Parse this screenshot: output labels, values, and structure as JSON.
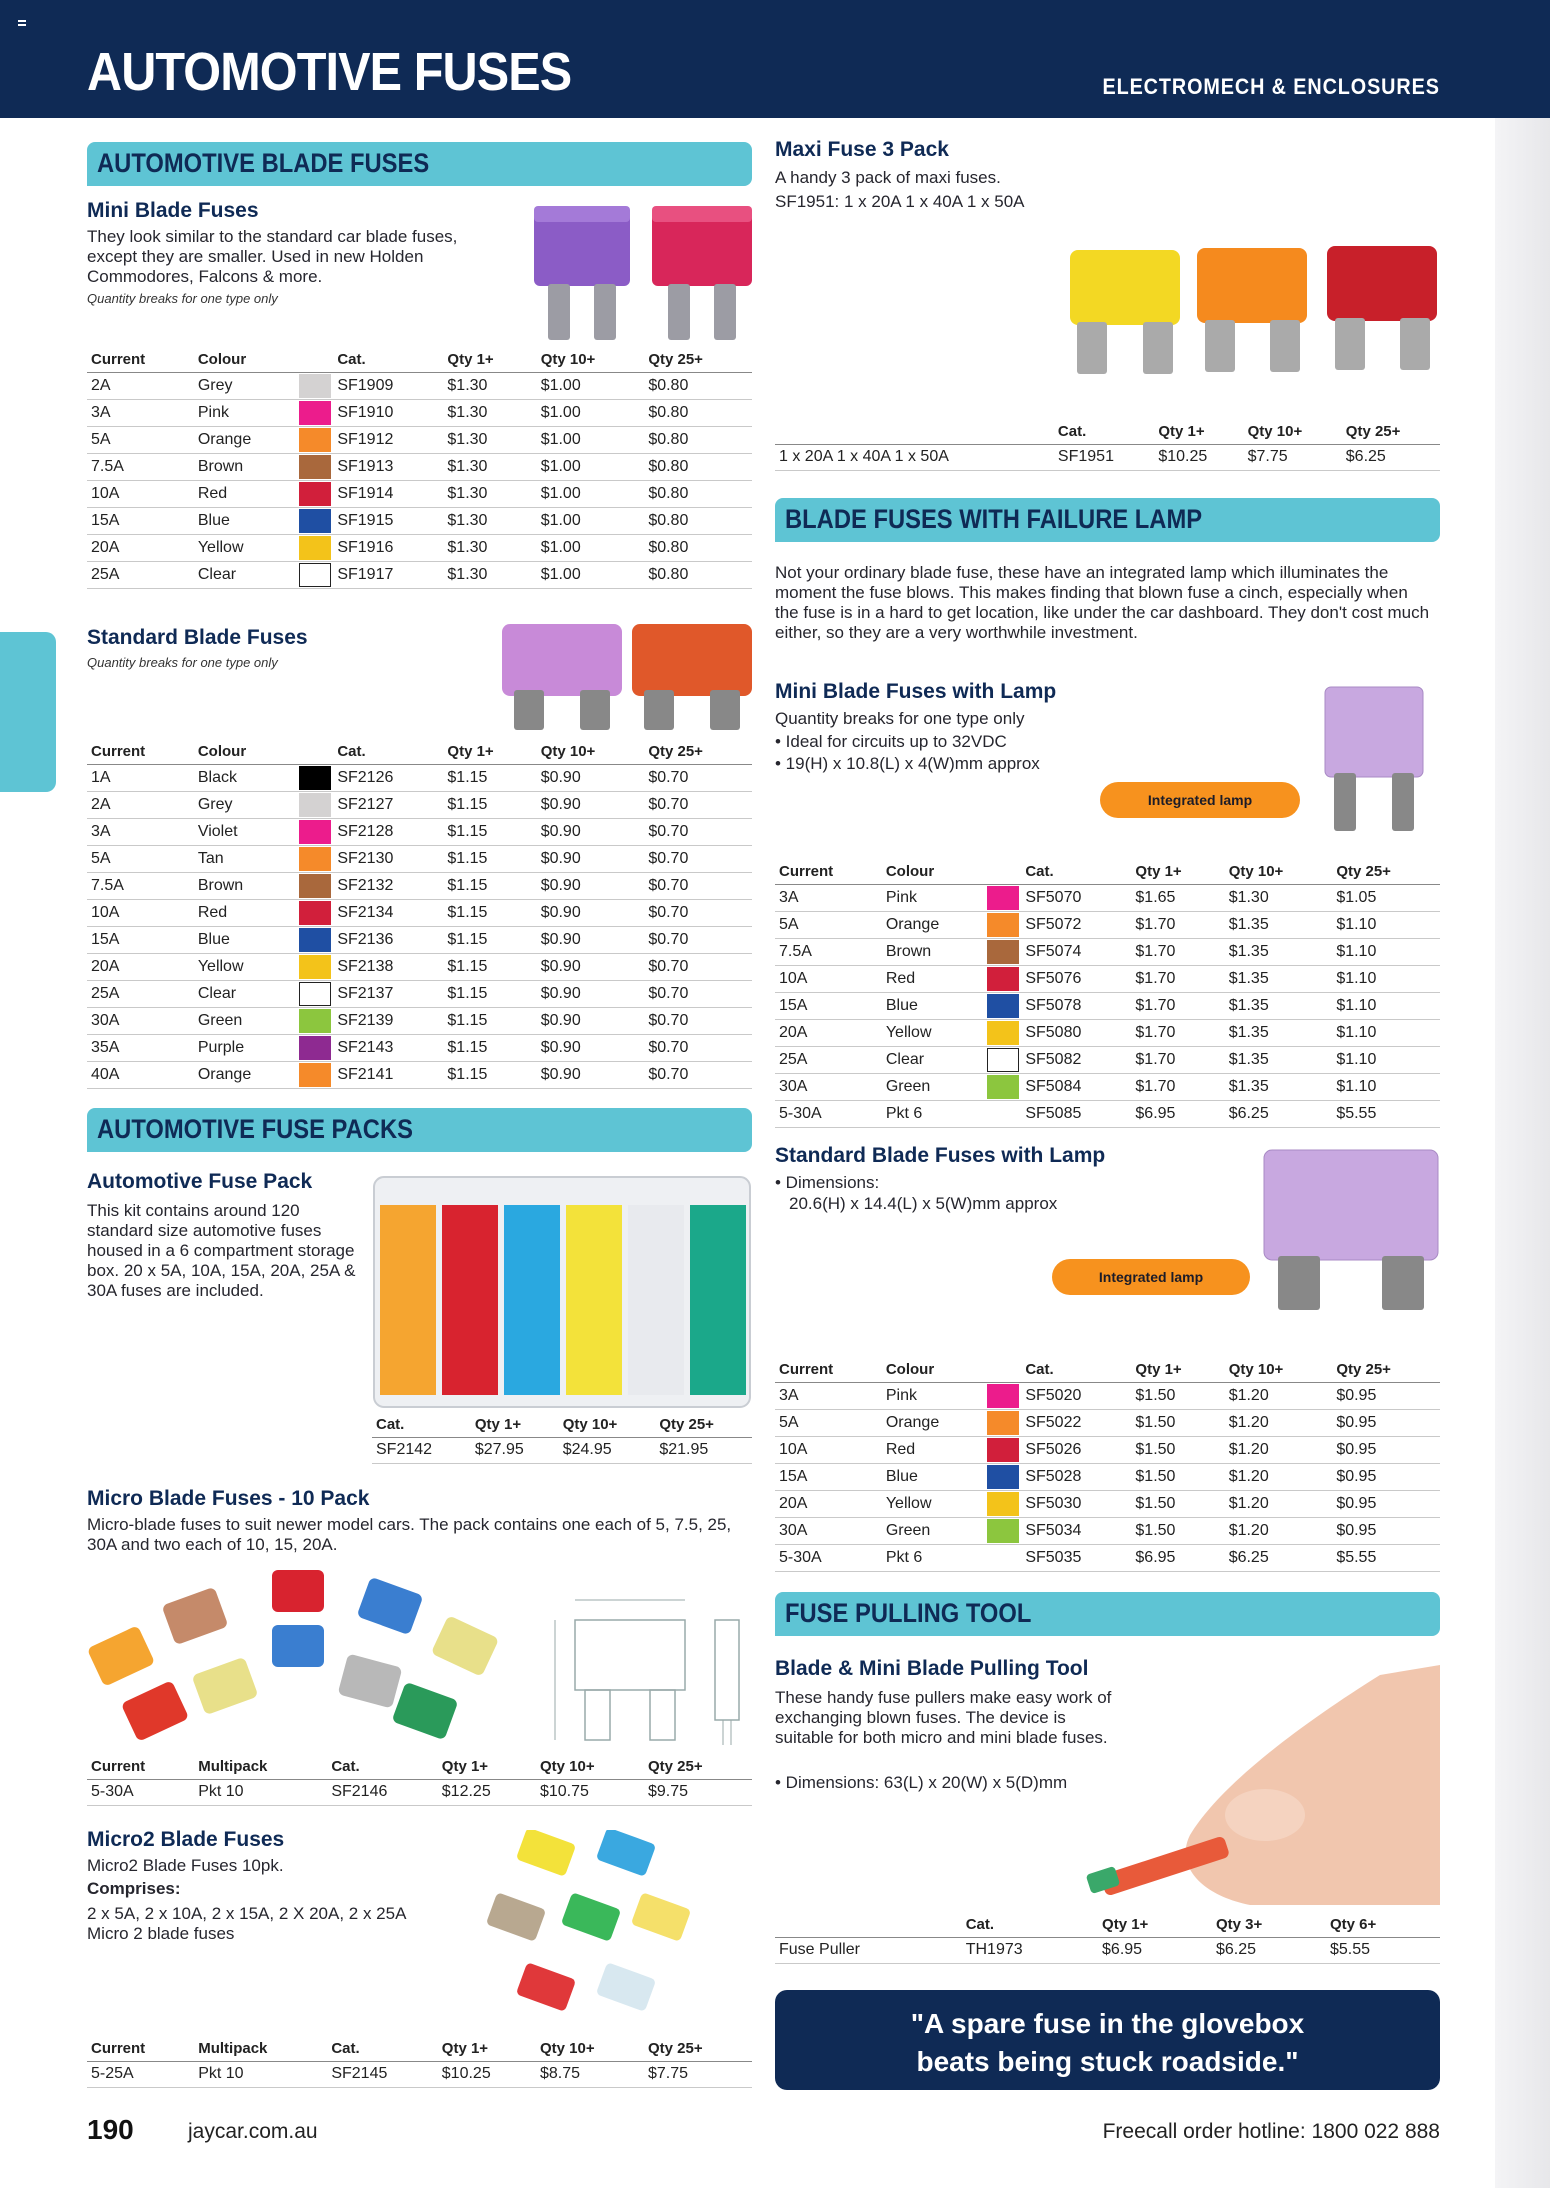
{
  "header": {
    "title": "AUTOMOTIVE FUSES",
    "category": "ELECTROMECH & ENCLOSURES"
  },
  "colors": {
    "navy": "#0f2a55",
    "teal": "#5ec4d4",
    "orange": "#f7921e"
  },
  "swatches": {
    "Grey": "#d4d2d2",
    "Pink": "#ec1c8c",
    "Orange": "#f58a2a",
    "Brown": "#a9683c",
    "Red": "#d11f3b",
    "Blue": "#1f4fa3",
    "Yellow": "#f3c31a",
    "Clear": "#ffffff",
    "Black": "#000000",
    "Violet": "#ec1c8c",
    "Tan": "#f58a2a",
    "Green": "#8cc63e",
    "Purple": "#8e2a91"
  },
  "blade": {
    "banner": "AUTOMOTIVE BLADE FUSES",
    "mini": {
      "title": "Mini Blade Fuses",
      "desc": "They look similar to the standard car blade fuses, except they are smaller. Used in new Holden Commodores, Falcons & more.",
      "note": "Quantity breaks for one type only",
      "headers": [
        "Current",
        "Colour",
        "",
        "Cat.",
        "Qty 1+",
        "Qty 10+",
        "Qty 25+"
      ],
      "rows": [
        [
          "2A",
          "Grey",
          "SF1909",
          "$1.30",
          "$1.00",
          "$0.80"
        ],
        [
          "3A",
          "Pink",
          "SF1910",
          "$1.30",
          "$1.00",
          "$0.80"
        ],
        [
          "5A",
          "Orange",
          "SF1912",
          "$1.30",
          "$1.00",
          "$0.80"
        ],
        [
          "7.5A",
          "Brown",
          "SF1913",
          "$1.30",
          "$1.00",
          "$0.80"
        ],
        [
          "10A",
          "Red",
          "SF1914",
          "$1.30",
          "$1.00",
          "$0.80"
        ],
        [
          "15A",
          "Blue",
          "SF1915",
          "$1.30",
          "$1.00",
          "$0.80"
        ],
        [
          "20A",
          "Yellow",
          "SF1916",
          "$1.30",
          "$1.00",
          "$0.80"
        ],
        [
          "25A",
          "Clear",
          "SF1917",
          "$1.30",
          "$1.00",
          "$0.80"
        ]
      ]
    },
    "standard": {
      "title": "Standard Blade Fuses",
      "note": "Quantity breaks for one type only",
      "headers": [
        "Current",
        "Colour",
        "",
        "Cat.",
        "Qty 1+",
        "Qty 10+",
        "Qty 25+"
      ],
      "rows": [
        [
          "1A",
          "Black",
          "SF2126",
          "$1.15",
          "$0.90",
          "$0.70"
        ],
        [
          "2A",
          "Grey",
          "SF2127",
          "$1.15",
          "$0.90",
          "$0.70"
        ],
        [
          "3A",
          "Violet",
          "SF2128",
          "$1.15",
          "$0.90",
          "$0.70"
        ],
        [
          "5A",
          "Tan",
          "SF2130",
          "$1.15",
          "$0.90",
          "$0.70"
        ],
        [
          "7.5A",
          "Brown",
          "SF2132",
          "$1.15",
          "$0.90",
          "$0.70"
        ],
        [
          "10A",
          "Red",
          "SF2134",
          "$1.15",
          "$0.90",
          "$0.70"
        ],
        [
          "15A",
          "Blue",
          "SF2136",
          "$1.15",
          "$0.90",
          "$0.70"
        ],
        [
          "20A",
          "Yellow",
          "SF2138",
          "$1.15",
          "$0.90",
          "$0.70"
        ],
        [
          "25A",
          "Clear",
          "SF2137",
          "$1.15",
          "$0.90",
          "$0.70"
        ],
        [
          "30A",
          "Green",
          "SF2139",
          "$1.15",
          "$0.90",
          "$0.70"
        ],
        [
          "35A",
          "Purple",
          "SF2143",
          "$1.15",
          "$0.90",
          "$0.70"
        ],
        [
          "40A",
          "Orange",
          "SF2141",
          "$1.15",
          "$0.90",
          "$0.70"
        ]
      ]
    }
  },
  "packs": {
    "banner": "AUTOMOTIVE FUSE PACKS",
    "fuse_pack": {
      "title": "Automotive Fuse Pack",
      "desc": "This kit contains around 120 standard size automotive fuses housed in a 6 compartment storage box. 20 x 5A, 10A, 15A, 20A, 25A & 30A fuses are included.",
      "headers": [
        "Cat.",
        "Qty 1+",
        "Qty 10+",
        "Qty 25+"
      ],
      "rows": [
        [
          "SF2142",
          "$27.95",
          "$24.95",
          "$21.95"
        ]
      ]
    },
    "micro": {
      "title": "Micro Blade Fuses - 10 Pack",
      "desc": "Micro-blade fuses to suit newer model cars. The pack contains one each of 5, 7.5, 25, 30A and two each of 10, 15, 20A.",
      "headers": [
        "Current",
        "Multipack",
        "Cat.",
        "Qty 1+",
        "Qty 10+",
        "Qty 25+"
      ],
      "rows": [
        [
          "5-30A",
          "Pkt 10",
          "SF2146",
          "$12.25",
          "$10.75",
          "$9.75"
        ]
      ]
    },
    "micro2": {
      "title": "Micro2 Blade Fuses",
      "desc": "Micro2 Blade Fuses 10pk.",
      "comprises_label": "Comprises:",
      "comprises": "2 x 5A, 2 x 10A, 2 x 15A, 2 X 20A, 2 x 25A Micro 2 blade fuses",
      "headers": [
        "Current",
        "Multipack",
        "Cat.",
        "Qty 1+",
        "Qty 10+",
        "Qty 25+"
      ],
      "rows": [
        [
          "5-25A",
          "Pkt 10",
          "SF2145",
          "$10.25",
          "$8.75",
          "$7.75"
        ]
      ]
    }
  },
  "maxi": {
    "title": "Maxi Fuse 3 Pack",
    "desc1": "A handy 3 pack of maxi fuses.",
    "desc2": "SF1951: 1 x 20A 1 x 40A 1 x 50A",
    "headers": [
      "",
      "Cat.",
      "Qty 1+",
      "Qty 10+",
      "Qty 25+"
    ],
    "rows": [
      [
        "1 x 20A 1 x 40A 1 x 50A",
        "SF1951",
        "$10.25",
        "$7.75",
        "$6.25"
      ]
    ]
  },
  "lamp": {
    "banner": "BLADE FUSES WITH FAILURE LAMP",
    "intro": "Not your ordinary blade fuse, these have an integrated lamp which illuminates the moment the fuse blows. This makes finding that blown fuse a cinch, especially when the fuse is in a hard to get location, like under the car dashboard. They don't cost much either, so they are a very worthwhile investment.",
    "badge": "Integrated lamp",
    "mini": {
      "title": "Mini Blade Fuses with Lamp",
      "sub": "Quantity breaks for one type only",
      "bullets": [
        "• Ideal for circuits up to 32VDC",
        "• 19(H) x 10.8(L) x 4(W)mm approx"
      ],
      "headers": [
        "Current",
        "Colour",
        "",
        "Cat.",
        "Qty 1+",
        "Qty 10+",
        "Qty 25+"
      ],
      "rows": [
        [
          "3A",
          "Pink",
          "SF5070",
          "$1.65",
          "$1.30",
          "$1.05"
        ],
        [
          "5A",
          "Orange",
          "SF5072",
          "$1.70",
          "$1.35",
          "$1.10"
        ],
        [
          "7.5A",
          "Brown",
          "SF5074",
          "$1.70",
          "$1.35",
          "$1.10"
        ],
        [
          "10A",
          "Red",
          "SF5076",
          "$1.70",
          "$1.35",
          "$1.10"
        ],
        [
          "15A",
          "Blue",
          "SF5078",
          "$1.70",
          "$1.35",
          "$1.10"
        ],
        [
          "20A",
          "Yellow",
          "SF5080",
          "$1.70",
          "$1.35",
          "$1.10"
        ],
        [
          "25A",
          "Clear",
          "SF5082",
          "$1.70",
          "$1.35",
          "$1.10"
        ],
        [
          "30A",
          "Green",
          "SF5084",
          "$1.70",
          "$1.35",
          "$1.10"
        ],
        [
          "5-30A",
          "Pkt 6",
          "SF5085",
          "$6.95",
          "$6.25",
          "$5.55"
        ]
      ]
    },
    "standard": {
      "title": "Standard Blade Fuses with Lamp",
      "bullets": [
        "• Dimensions:",
        "20.6(H) x 14.4(L) x 5(W)mm approx"
      ],
      "headers": [
        "Current",
        "Colour",
        "",
        "Cat.",
        "Qty 1+",
        "Qty 10+",
        "Qty 25+"
      ],
      "rows": [
        [
          "3A",
          "Pink",
          "SF5020",
          "$1.50",
          "$1.20",
          "$0.95"
        ],
        [
          "5A",
          "Orange",
          "SF5022",
          "$1.50",
          "$1.20",
          "$0.95"
        ],
        [
          "10A",
          "Red",
          "SF5026",
          "$1.50",
          "$1.20",
          "$0.95"
        ],
        [
          "15A",
          "Blue",
          "SF5028",
          "$1.50",
          "$1.20",
          "$0.95"
        ],
        [
          "20A",
          "Yellow",
          "SF5030",
          "$1.50",
          "$1.20",
          "$0.95"
        ],
        [
          "30A",
          "Green",
          "SF5034",
          "$1.50",
          "$1.20",
          "$0.95"
        ],
        [
          "5-30A",
          "Pkt 6",
          "SF5035",
          "$6.95",
          "$6.25",
          "$5.55"
        ]
      ]
    }
  },
  "puller": {
    "banner": "FUSE PULLING TOOL",
    "title": "Blade & Mini Blade Pulling Tool",
    "desc": "These handy fuse pullers make easy work of exchanging blown fuses. The device is suitable for both micro and mini blade fuses.",
    "bullet": "• Dimensions: 63(L) x 20(W) x 5(D)mm",
    "headers": [
      "",
      "Cat.",
      "Qty 1+",
      "Qty 3+",
      "Qty 6+"
    ],
    "rows": [
      [
        "Fuse Puller",
        "TH1973",
        "$6.95",
        "$6.25",
        "$5.55"
      ]
    ]
  },
  "quote": {
    "line1": "\"A spare fuse in the glovebox",
    "line2": "beats being stuck roadside.\""
  },
  "footer": {
    "page": "190",
    "site": "jaycar.com.au",
    "hotline": "Freecall order hotline: 1800 022 888"
  }
}
